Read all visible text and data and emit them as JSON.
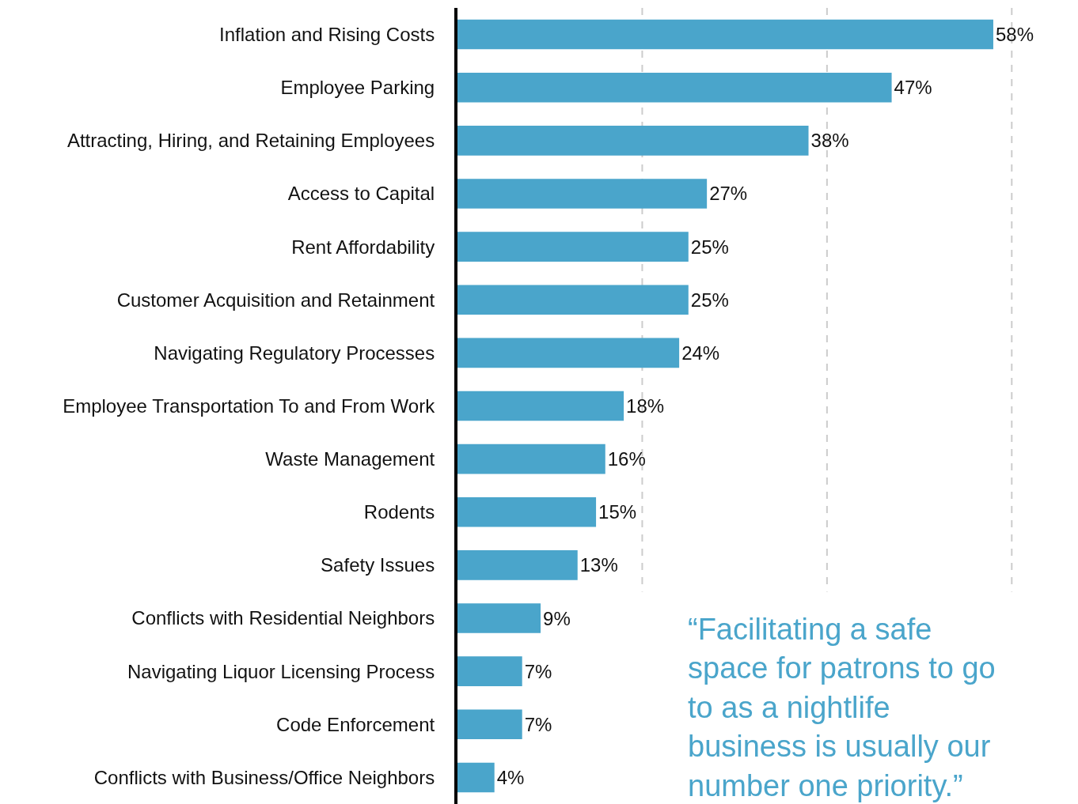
{
  "chart_data": {
    "type": "bar",
    "orientation": "horizontal",
    "categories": [
      "Inflation and Rising Costs",
      "Employee Parking",
      "Attracting, Hiring, and Retaining Employees",
      "Access to Capital",
      "Rent Affordability",
      "Customer Acquisition and Retainment",
      "Navigating Regulatory Processes",
      "Employee Transportation To and From Work",
      "Waste Management",
      "Rodents",
      "Safety Issues",
      "Conflicts with Residential Neighbors",
      "Navigating Liquor Licensing Process",
      "Code Enforcement",
      "Conflicts with Business/Office Neighbors"
    ],
    "values": [
      58,
      47,
      38,
      27,
      25,
      25,
      24,
      18,
      16,
      15,
      13,
      9,
      7,
      7,
      4
    ],
    "value_labels": [
      "58%",
      "47%",
      "38%",
      "27%",
      "25%",
      "25%",
      "24%",
      "18%",
      "16%",
      "15%",
      "13%",
      "9%",
      "7%",
      "7%",
      "4%"
    ],
    "color": "#4aa5cb",
    "xlim": [
      0,
      67
    ],
    "xticks": [
      {
        "value": 20,
        "label": null
      },
      {
        "value": 40,
        "label": null
      },
      {
        "value": 60,
        "label": null
      }
    ],
    "grid": "x",
    "tick_labels": "y",
    "legend": false,
    "annotations": [
      "“Facilitating a safe space for patrons to go to as a nightlife business is usually our number one priority.”"
    ]
  }
}
